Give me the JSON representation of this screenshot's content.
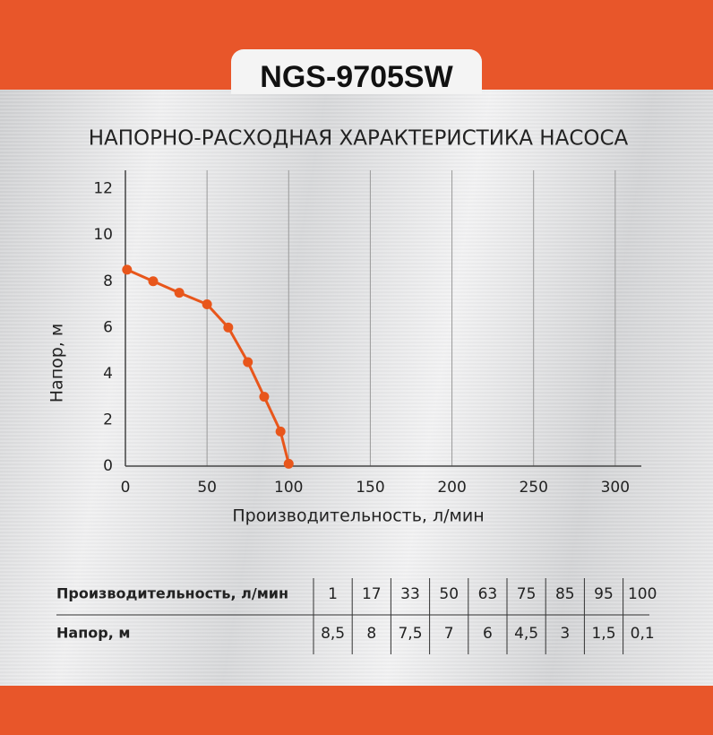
{
  "header": {
    "model": "NGS-9705SW"
  },
  "chart_data": {
    "type": "line",
    "title": "НАПОРНО-РАСХОДНАЯ ХАРАКТЕРИСТИКА НАСОСА",
    "xlabel": "Производительность, л/мин",
    "ylabel": "Напор, м",
    "x": [
      1,
      17,
      33,
      50,
      63,
      75,
      85,
      95,
      100
    ],
    "series": [
      {
        "name": "Напор, м",
        "color": "#e8561b",
        "values": [
          8.5,
          8,
          7.5,
          7,
          6,
          4.5,
          3,
          1.5,
          0.1
        ],
        "value_labels": [
          "8,5",
          "8",
          "7,5",
          "7",
          "6",
          "4,5",
          "3",
          "1,5",
          "0,1"
        ]
      }
    ],
    "xlim": [
      0,
      316
    ],
    "ylim": [
      0,
      12.8
    ],
    "xticks": [
      0,
      50,
      100,
      150,
      200,
      250,
      300
    ],
    "yticks": [
      0,
      2,
      4,
      6,
      8,
      10,
      12
    ],
    "grid": true
  }
}
